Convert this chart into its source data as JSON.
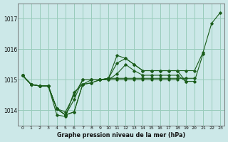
{
  "title": "Graphe pression niveau de la mer (hPa)",
  "bg_color": "#cce8e8",
  "grid_color": "#99ccbb",
  "line_color": "#1a5c1a",
  "ylim": [
    1013.5,
    1017.5
  ],
  "xlim": [
    -0.5,
    23.5
  ],
  "yticks": [
    1014,
    1015,
    1016,
    1017
  ],
  "xticks": [
    0,
    1,
    2,
    3,
    4,
    5,
    6,
    7,
    8,
    9,
    10,
    11,
    12,
    13,
    14,
    15,
    16,
    17,
    18,
    19,
    20,
    21,
    22,
    23
  ],
  "series": [
    [
      1015.15,
      1014.85,
      1014.8,
      1014.8,
      1014.05,
      1013.85,
      1013.95,
      1014.85,
      1014.9,
      1015.0,
      1015.05,
      1015.55,
      1015.7,
      1015.5,
      1015.3,
      1015.3,
      1015.3,
      1015.3,
      1015.3,
      1015.3,
      1015.3,
      1015.9,
      1016.85,
      1017.2
    ],
    [
      1015.15,
      1014.85,
      1014.8,
      1014.8,
      1014.05,
      1013.85,
      1013.95,
      1014.85,
      1014.9,
      1015.0,
      1015.05,
      1015.8,
      1015.7,
      1015.5,
      1015.3,
      1015.3,
      1015.3,
      1015.3,
      1015.3,
      1014.95,
      1014.95,
      1015.85,
      null,
      null
    ],
    [
      1015.15,
      1014.85,
      1014.8,
      1014.8,
      1014.05,
      1013.85,
      1014.35,
      1015.0,
      1015.0,
      1015.0,
      1015.0,
      1015.2,
      1015.5,
      1015.3,
      1015.15,
      1015.15,
      1015.15,
      1015.15,
      1015.15,
      1014.95,
      null,
      null,
      null,
      null
    ],
    [
      1015.15,
      1014.85,
      1014.8,
      1014.8,
      1013.85,
      1013.8,
      1014.6,
      1014.85,
      1015.0,
      1015.0,
      1015.0,
      1015.0,
      1015.0,
      1015.0,
      1015.0,
      1015.0,
      1015.0,
      1015.0,
      1015.0,
      null,
      null,
      null,
      null,
      null
    ],
    [
      1015.15,
      1014.85,
      1014.8,
      1014.8,
      1014.05,
      1013.95,
      1014.5,
      1015.0,
      1015.0,
      1015.0,
      1015.05,
      1015.05,
      1015.05,
      1015.05,
      1015.05,
      1015.05,
      1015.05,
      1015.05,
      1015.05,
      1015.05,
      1015.05,
      null,
      null,
      null
    ]
  ]
}
